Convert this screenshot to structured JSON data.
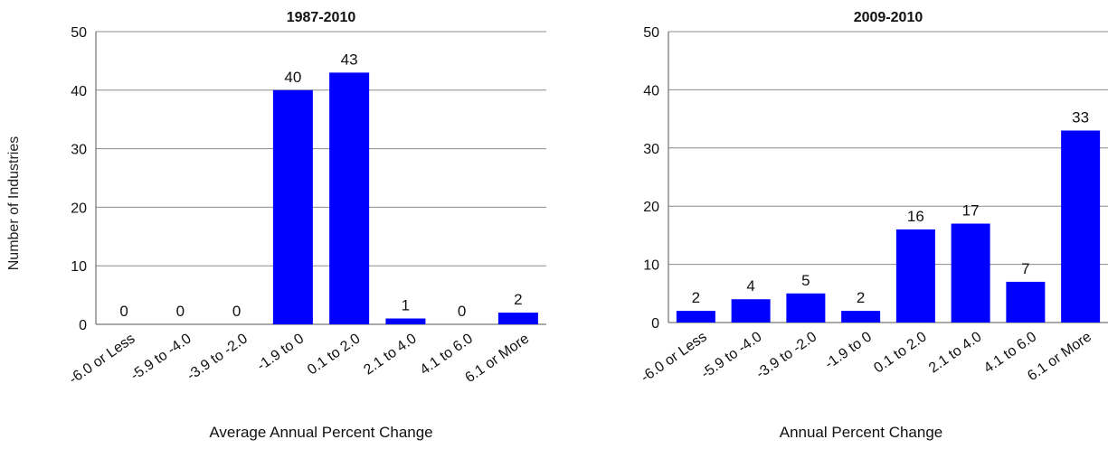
{
  "colors": {
    "bar": "#0000FF",
    "grid": "#8C8C8C",
    "axis": "#555555"
  },
  "shared_ylabel": "Number of Industries",
  "chart_data": [
    {
      "type": "bar",
      "title": "1987-2010",
      "xlabel": "Average Annual  Percent Change",
      "ylabel": "Number of Industries",
      "categories": [
        "-6.0 or Less",
        "-5.9 to -4.0",
        "-3.9 to -2.0",
        "-1.9 to 0",
        "0.1 to 2.0",
        "2.1 to 4.0",
        "4.1 to 6.0",
        "6.1 or More"
      ],
      "values": [
        0,
        0,
        0,
        40,
        43,
        1,
        0,
        2
      ],
      "ylim": [
        0,
        50
      ],
      "yticks": [
        0,
        10,
        20,
        30,
        40,
        50
      ],
      "grid": true,
      "data_labels": true
    },
    {
      "type": "bar",
      "title": "2009-2010",
      "xlabel": "Annual Percent Change",
      "ylabel": "",
      "categories": [
        "-6.0 or Less",
        "-5.9 to -4.0",
        "-3.9 to -2.0",
        "-1.9 to 0",
        "0.1 to 2.0",
        "2.1 to 4.0",
        "4.1 to 6.0",
        "6.1 or More"
      ],
      "values": [
        2,
        4,
        5,
        2,
        16,
        17,
        7,
        33
      ],
      "ylim": [
        0,
        50
      ],
      "yticks": [
        0,
        10,
        20,
        30,
        40,
        50
      ],
      "grid": true,
      "data_labels": true
    }
  ]
}
